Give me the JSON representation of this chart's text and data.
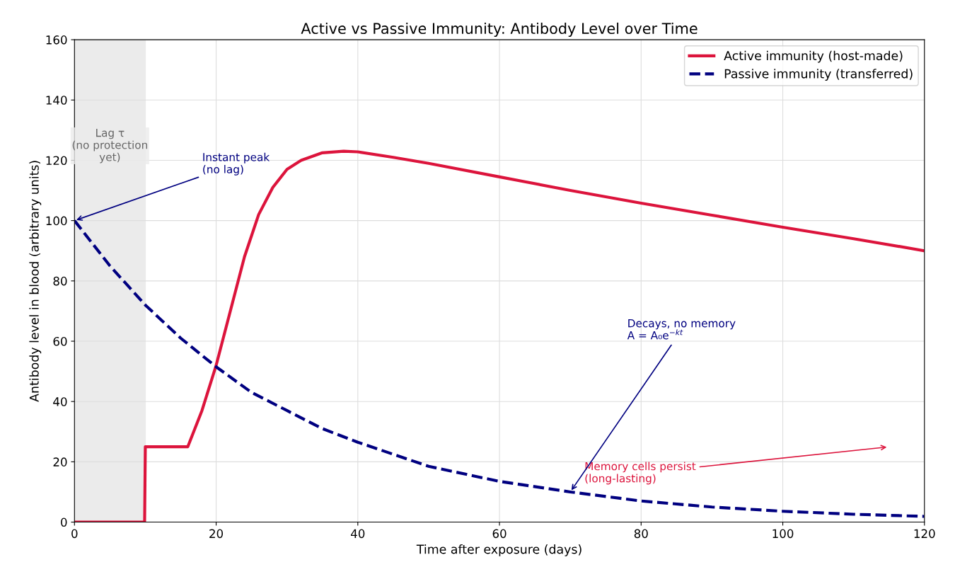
{
  "chart_data": {
    "type": "line",
    "title": "Active vs Passive Immunity: Antibody Level over Time",
    "xlabel": "Time after exposure (days)",
    "ylabel": "Antibody level in blood (arbitrary units)",
    "series": [
      {
        "name": "Active immunity (host-made)",
        "color": "#dc143c",
        "line_style": "solid",
        "x": [
          0,
          9.9,
          10,
          16,
          18,
          20,
          22,
          24,
          26,
          28,
          30,
          32,
          35,
          38,
          40,
          45,
          50,
          60,
          70,
          80,
          90,
          100,
          110,
          120
        ],
        "values": [
          0,
          0,
          25,
          25,
          37,
          52,
          70,
          88,
          102,
          111,
          117,
          120,
          122.5,
          123,
          122.8,
          121,
          119,
          114.5,
          110,
          105.8,
          101.8,
          97.8,
          94,
          90
        ]
      },
      {
        "name": "Passive immunity (transferred)",
        "color": "#000080",
        "line_style": "dashed",
        "x": [
          0,
          5,
          10,
          15,
          20,
          25,
          30,
          35,
          40,
          50,
          60,
          70,
          80,
          90,
          100,
          110,
          120
        ],
        "values": [
          100,
          85,
          72,
          61,
          51.5,
          43,
          37,
          31,
          26.5,
          18.5,
          13.5,
          10,
          7,
          5,
          3.6,
          2.6,
          1.9
        ]
      }
    ],
    "xlim": [
      0,
      120
    ],
    "xticks": [
      0,
      20,
      40,
      60,
      80,
      100,
      120
    ],
    "ylim": [
      0,
      160
    ],
    "yticks": [
      0,
      20,
      40,
      60,
      80,
      100,
      120,
      140,
      160
    ],
    "bands": [
      {
        "axis": "x",
        "from": 0,
        "to": 10,
        "label": "Lag τ\n(no protection\nyet)",
        "color": "#d3d3d3"
      }
    ],
    "annotations": [
      {
        "text": "Instant peak\n(no lag)",
        "x": 0,
        "y": 100
      },
      {
        "text": "Decays, no memory\nA = A₀e$^{−kt}$",
        "x": 70,
        "y": 10
      },
      "Memory cells persist\n(long-lasting)"
    ],
    "grid": true,
    "legend": "top right",
    "marker": "none"
  }
}
